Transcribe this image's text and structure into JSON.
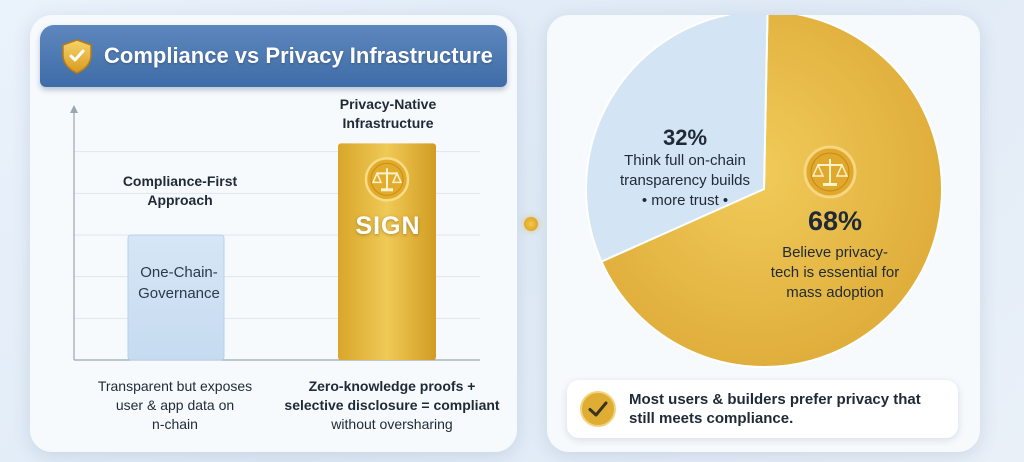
{
  "header": {
    "title": "Compliance vs Privacy Infrastructure",
    "icon": "shield-icon"
  },
  "bar_chart": {
    "bars": [
      {
        "title_lines": [
          "Compliance-First",
          "Approach"
        ],
        "inner_lines": [
          "One-Chain-",
          "Governance"
        ],
        "caption_lines": [
          "Transparent but exposes",
          "user & app data on",
          "n-chain"
        ],
        "color": "#cfe0f2"
      },
      {
        "title_lines": [
          "Privacy-Native",
          "Infrastructure"
        ],
        "inner_label": "SIGN",
        "inner_icon": "scales-icon",
        "caption_lines": [
          "Zero-knowledge proofs +",
          "selective disclosure = compliant",
          "without oversharing"
        ],
        "color": "#e6b93c"
      }
    ]
  },
  "chart_data": [
    {
      "type": "bar",
      "categories": [
        "Compliance-First Approach",
        "Privacy-Native Infrastructure"
      ],
      "values": [
        30,
        52
      ],
      "ylim": [
        0,
        60
      ],
      "grid": true,
      "title": "",
      "xlabel": "",
      "ylabel": ""
    },
    {
      "type": "pie",
      "slices": [
        {
          "value": 68,
          "color": "#e6b93c"
        },
        {
          "value": 32,
          "color": "#d3e4f4"
        }
      ]
    }
  ],
  "pie_labels": {
    "small": {
      "percent": "32%",
      "desc_lines": [
        "Think full on-chain",
        "transparency builds",
        "• more trust •"
      ]
    },
    "large": {
      "percent": "68%",
      "desc_lines": [
        "Believe privacy-",
        "tech is essential for",
        "mass adoption"
      ],
      "icon": "scales-icon"
    }
  },
  "callout": {
    "icon": "check-icon",
    "text": "Most users & builders prefer privacy that still meets compliance."
  },
  "colors": {
    "accent_gold": "#e6b93c",
    "accent_blue": "#4a76b0",
    "light_blue": "#cfe0f2"
  }
}
